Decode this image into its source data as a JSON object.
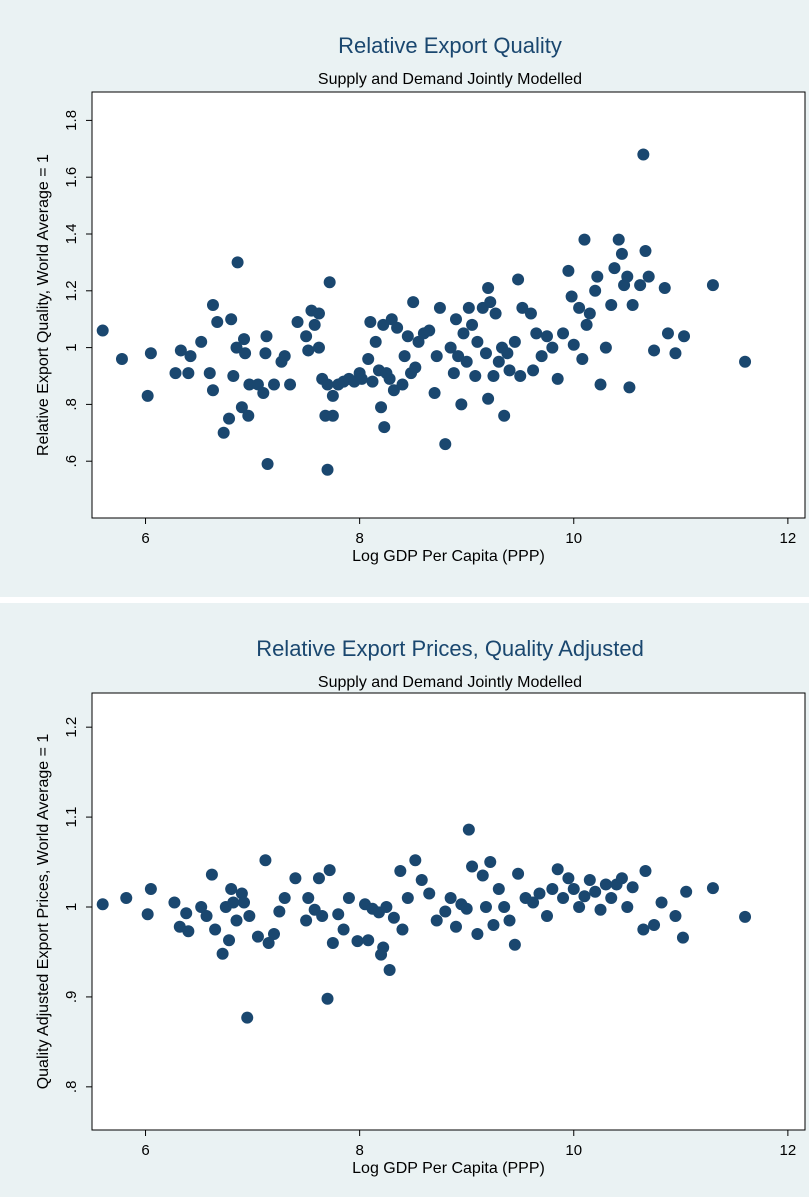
{
  "chart_data": [
    {
      "type": "scatter",
      "title": "Relative Export Quality",
      "subtitle": "Supply and Demand Jointly Modelled",
      "x_label": "Log GDP Per Capita (PPP)",
      "y_label": "Relative Export Quality, World Average = 1",
      "color": "#1a476f",
      "xlim": [
        5.5,
        12.16
      ],
      "xticks": [
        6,
        8,
        10,
        12
      ],
      "ylim": [
        0.4,
        1.9
      ],
      "yticks": [
        {
          "value": 0.6,
          "label": ".6"
        },
        {
          "value": 0.8,
          "label": ".8"
        },
        1,
        1.2,
        1.4,
        1.6,
        1.8
      ],
      "x": [
        5.6,
        5.78,
        6.02,
        6.05,
        6.28,
        6.33,
        6.4,
        6.42,
        6.52,
        6.6,
        6.63,
        6.63,
        6.67,
        6.73,
        6.78,
        6.8,
        6.82,
        6.85,
        6.86,
        6.9,
        6.92,
        6.93,
        6.96,
        6.97,
        7.05,
        7.1,
        7.12,
        7.13,
        7.14,
        7.2,
        7.27,
        7.3,
        7.35,
        7.42,
        7.5,
        7.52,
        7.55,
        7.58,
        7.62,
        7.62,
        7.65,
        7.68,
        7.7,
        7.7,
        7.72,
        7.75,
        7.75,
        7.8,
        7.85,
        7.9,
        7.95,
        8.0,
        8.02,
        8.08,
        8.1,
        8.12,
        8.15,
        8.18,
        8.2,
        8.22,
        8.23,
        8.25,
        8.28,
        8.3,
        8.32,
        8.35,
        8.4,
        8.42,
        8.45,
        8.48,
        8.5,
        8.52,
        8.55,
        8.6,
        8.65,
        8.7,
        8.72,
        8.75,
        8.8,
        8.85,
        8.88,
        8.9,
        8.92,
        8.95,
        8.97,
        9.0,
        9.02,
        9.05,
        9.08,
        9.1,
        9.15,
        9.18,
        9.2,
        9.2,
        9.22,
        9.25,
        9.27,
        9.3,
        9.33,
        9.35,
        9.38,
        9.4,
        9.45,
        9.48,
        9.5,
        9.52,
        9.6,
        9.62,
        9.65,
        9.7,
        9.75,
        9.8,
        9.85,
        9.9,
        9.95,
        9.98,
        10.0,
        10.05,
        10.08,
        10.1,
        10.12,
        10.15,
        10.2,
        10.22,
        10.25,
        10.3,
        10.35,
        10.38,
        10.42,
        10.45,
        10.47,
        10.5,
        10.52,
        10.55,
        10.62,
        10.65,
        10.67,
        10.7,
        10.75,
        10.85,
        10.88,
        10.95,
        11.03,
        11.3,
        11.6
      ],
      "values": [
        1.06,
        0.96,
        0.83,
        0.98,
        0.91,
        0.99,
        0.91,
        0.97,
        1.02,
        0.91,
        0.85,
        1.15,
        1.09,
        0.7,
        0.75,
        1.1,
        0.9,
        1.0,
        1.3,
        0.79,
        1.03,
        0.98,
        0.76,
        0.87,
        0.87,
        0.84,
        0.98,
        1.04,
        0.59,
        0.87,
        0.95,
        0.97,
        0.87,
        1.09,
        1.04,
        0.99,
        1.13,
        1.08,
        1.12,
        1.0,
        0.89,
        0.76,
        0.87,
        0.57,
        1.23,
        0.76,
        0.83,
        0.87,
        0.88,
        0.89,
        0.88,
        0.91,
        0.89,
        0.96,
        1.09,
        0.88,
        1.02,
        0.92,
        0.79,
        1.08,
        0.72,
        0.91,
        0.89,
        1.1,
        0.85,
        1.07,
        0.87,
        0.97,
        1.04,
        0.91,
        1.16,
        0.93,
        1.02,
        1.05,
        1.06,
        0.84,
        0.97,
        1.14,
        0.66,
        1.0,
        0.91,
        1.1,
        0.97,
        0.8,
        1.05,
        0.95,
        1.14,
        1.08,
        0.9,
        1.02,
        1.14,
        0.98,
        1.21,
        0.82,
        1.16,
        0.9,
        1.12,
        0.95,
        1.0,
        0.76,
        0.98,
        0.92,
        1.02,
        1.24,
        0.9,
        1.14,
        1.12,
        0.92,
        1.05,
        0.97,
        1.04,
        1.0,
        0.89,
        1.05,
        1.27,
        1.18,
        1.01,
        1.14,
        0.96,
        1.38,
        1.08,
        1.12,
        1.2,
        1.25,
        0.87,
        1.0,
        1.15,
        1.28,
        1.38,
        1.33,
        1.22,
        1.25,
        0.86,
        1.15,
        1.22,
        1.68,
        1.34,
        1.25,
        0.99,
        1.21,
        1.05,
        0.98,
        1.04,
        1.22,
        0.95
      ]
    },
    {
      "type": "scatter",
      "title": "Relative Export Prices, Quality Adjusted",
      "subtitle": "Supply and Demand Jointly Modelled",
      "x_label": "Log GDP Per Capita (PPP)",
      "y_label": "Quality Adjusted Export Prices, World Average = 1",
      "color": "#1a476f",
      "xlim": [
        5.5,
        12.16
      ],
      "xticks": [
        6,
        8,
        10,
        12
      ],
      "ylim": [
        0.752,
        1.238
      ],
      "yticks": [
        {
          "value": 0.8,
          "label": ".8"
        },
        {
          "value": 0.9,
          "label": ".9"
        },
        1,
        1.1,
        1.2
      ],
      "x": [
        5.6,
        5.82,
        6.02,
        6.05,
        6.27,
        6.32,
        6.38,
        6.4,
        6.52,
        6.57,
        6.62,
        6.65,
        6.72,
        6.75,
        6.78,
        6.8,
        6.82,
        6.85,
        6.9,
        6.92,
        6.95,
        6.97,
        7.05,
        7.12,
        7.15,
        7.2,
        7.25,
        7.3,
        7.4,
        7.5,
        7.52,
        7.58,
        7.62,
        7.65,
        7.7,
        7.72,
        7.75,
        7.8,
        7.85,
        7.9,
        7.98,
        8.05,
        8.08,
        8.12,
        8.18,
        8.2,
        8.22,
        8.25,
        8.28,
        8.32,
        8.38,
        8.4,
        8.45,
        8.52,
        8.58,
        8.65,
        8.72,
        8.8,
        8.85,
        8.9,
        8.95,
        9.0,
        9.02,
        9.05,
        9.1,
        9.15,
        9.18,
        9.22,
        9.25,
        9.3,
        9.35,
        9.4,
        9.45,
        9.48,
        9.55,
        9.62,
        9.68,
        9.75,
        9.8,
        9.85,
        9.9,
        9.95,
        10.0,
        10.05,
        10.1,
        10.15,
        10.2,
        10.25,
        10.3,
        10.35,
        10.4,
        10.45,
        10.5,
        10.55,
        10.65,
        10.67,
        10.75,
        10.82,
        10.95,
        11.02,
        11.05,
        11.3,
        11.6
      ],
      "values": [
        1.003,
        1.01,
        0.992,
        1.02,
        1.005,
        0.978,
        0.993,
        0.973,
        1.0,
        0.99,
        1.036,
        0.975,
        0.948,
        1.0,
        0.963,
        1.02,
        1.005,
        0.985,
        1.015,
        1.005,
        0.877,
        0.99,
        0.967,
        1.052,
        0.96,
        0.97,
        0.995,
        1.01,
        1.032,
        0.985,
        1.01,
        0.997,
        1.032,
        0.99,
        0.898,
        1.041,
        0.96,
        0.992,
        0.975,
        1.01,
        0.962,
        1.003,
        0.963,
        0.998,
        0.994,
        0.947,
        0.955,
        1.0,
        0.93,
        0.988,
        1.04,
        0.975,
        1.01,
        1.052,
        1.03,
        1.015,
        0.985,
        0.995,
        1.01,
        0.978,
        1.003,
        0.998,
        1.086,
        1.045,
        0.97,
        1.035,
        1.0,
        1.05,
        0.98,
        1.02,
        1.0,
        0.985,
        0.958,
        1.037,
        1.01,
        1.005,
        1.015,
        0.99,
        1.02,
        1.042,
        1.01,
        1.032,
        1.02,
        1.0,
        1.012,
        1.03,
        1.017,
        0.997,
        1.025,
        1.01,
        1.025,
        1.032,
        1.0,
        1.022,
        0.975,
        1.04,
        0.98,
        1.005,
        0.99,
        0.966,
        1.017,
        1.021,
        0.989
      ]
    }
  ]
}
